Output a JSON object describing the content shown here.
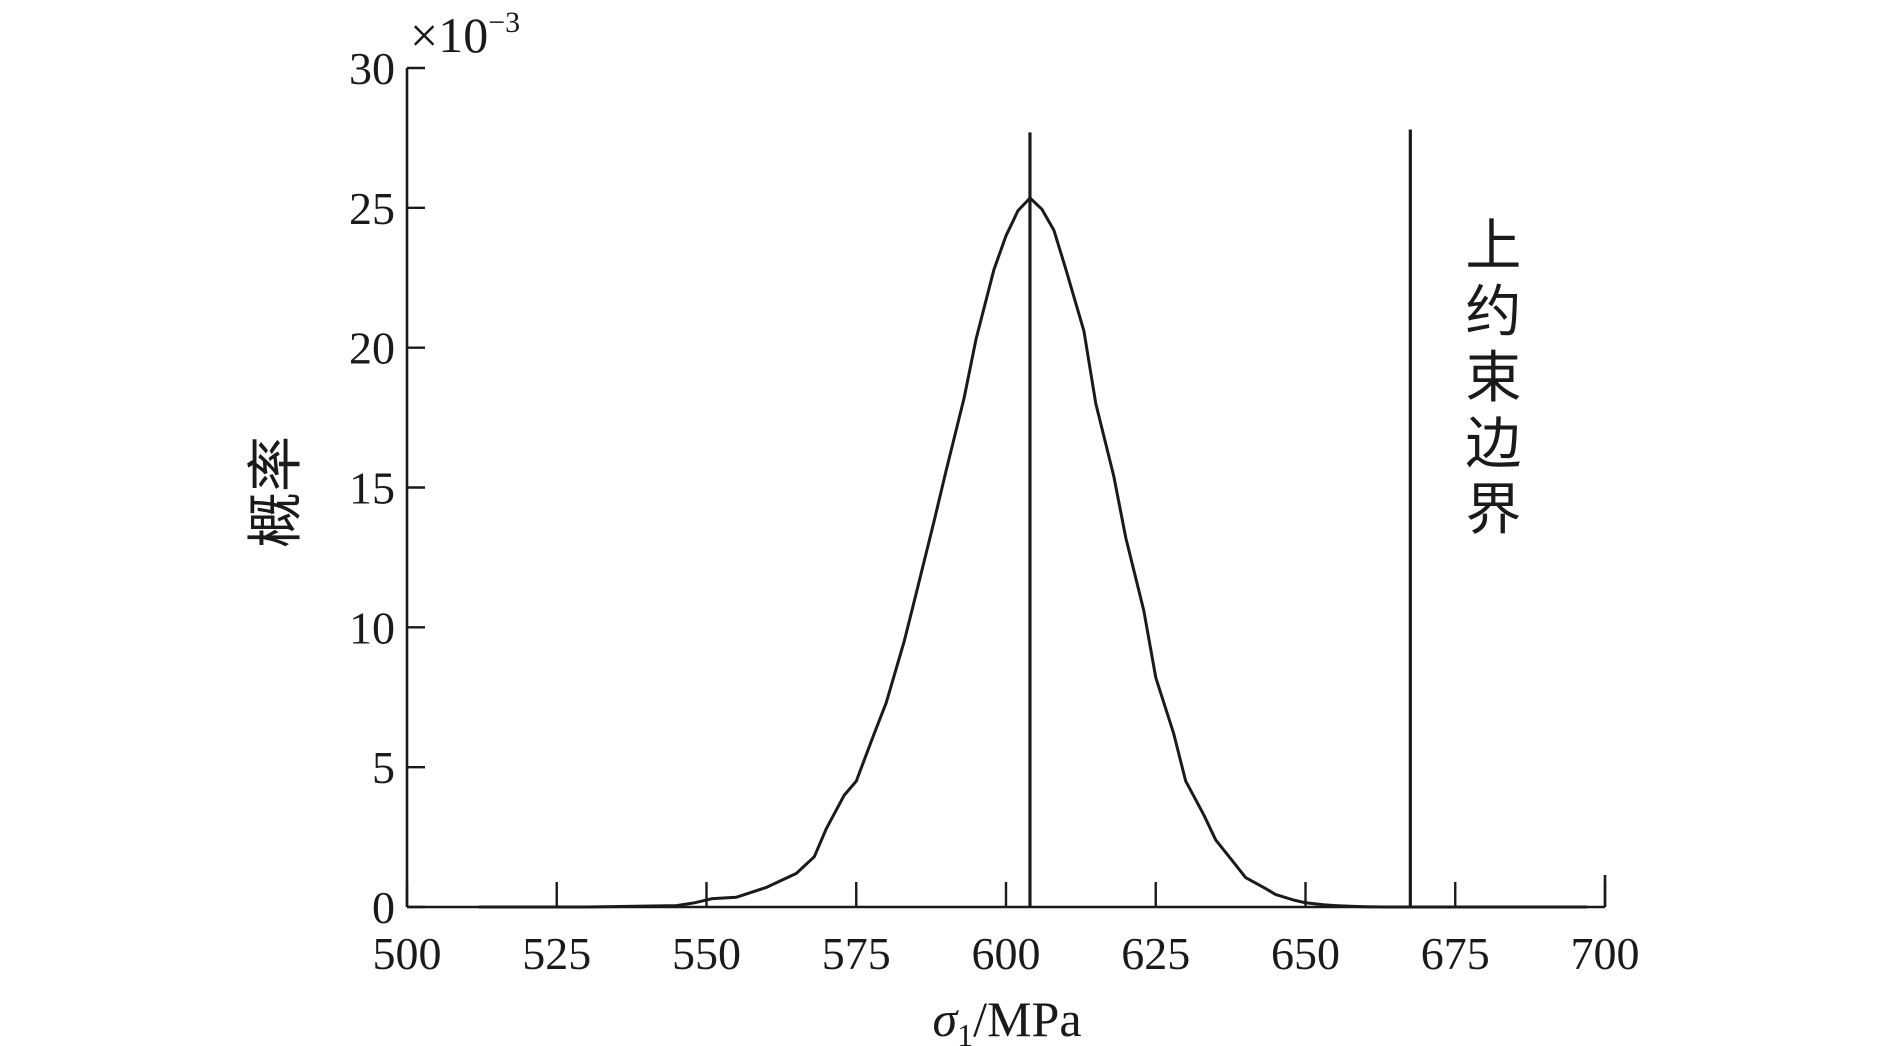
{
  "chart_data": {
    "type": "line",
    "title": "",
    "xlabel_symbol": "σ",
    "xlabel_subscript": "1",
    "xlabel_unit": "/MPa",
    "ylabel": "概率",
    "y_multiplier": "×10",
    "y_multiplier_exp": "−3",
    "xlim": [
      500,
      700
    ],
    "ylim": [
      0,
      30
    ],
    "x_ticks": [
      500,
      525,
      550,
      575,
      600,
      625,
      650,
      675,
      700
    ],
    "y_ticks": [
      0,
      5,
      10,
      15,
      20,
      25,
      30
    ],
    "grid": false,
    "series": [
      {
        "x": [
          512,
          530,
          545,
          548,
          551,
          555,
          560,
          565,
          568,
          570,
          573,
          575,
          578,
          580,
          583,
          585,
          588,
          590,
          593,
          595,
          598,
          600,
          602,
          604,
          606,
          608,
          610,
          613,
          615,
          618,
          620,
          623,
          625,
          628,
          630,
          633,
          635,
          638,
          640,
          643,
          645,
          648,
          650,
          653,
          655,
          658,
          660,
          663,
          667,
          680,
          697
        ],
        "y": [
          0,
          0,
          0.05,
          0.15,
          0.3,
          0.35,
          0.7,
          1.2,
          1.8,
          2.8,
          4.0,
          4.5,
          6.2,
          7.3,
          9.5,
          11.2,
          13.8,
          15.6,
          18.2,
          20.3,
          22.8,
          24.0,
          24.9,
          25.35,
          24.95,
          24.2,
          22.8,
          20.6,
          18.0,
          15.4,
          13.2,
          10.6,
          8.2,
          6.2,
          4.5,
          3.3,
          2.4,
          1.6,
          1.05,
          0.7,
          0.45,
          0.25,
          0.15,
          0.08,
          0.05,
          0.02,
          0.01,
          0,
          0,
          0,
          0
        ]
      }
    ],
    "vertical_lines": [
      {
        "x": 604,
        "y_top": 27.7,
        "label": ""
      },
      {
        "x": 667.5,
        "y_top": 27.8,
        "label": "上约束边界"
      }
    ],
    "annotation_text": "上约束边界"
  }
}
